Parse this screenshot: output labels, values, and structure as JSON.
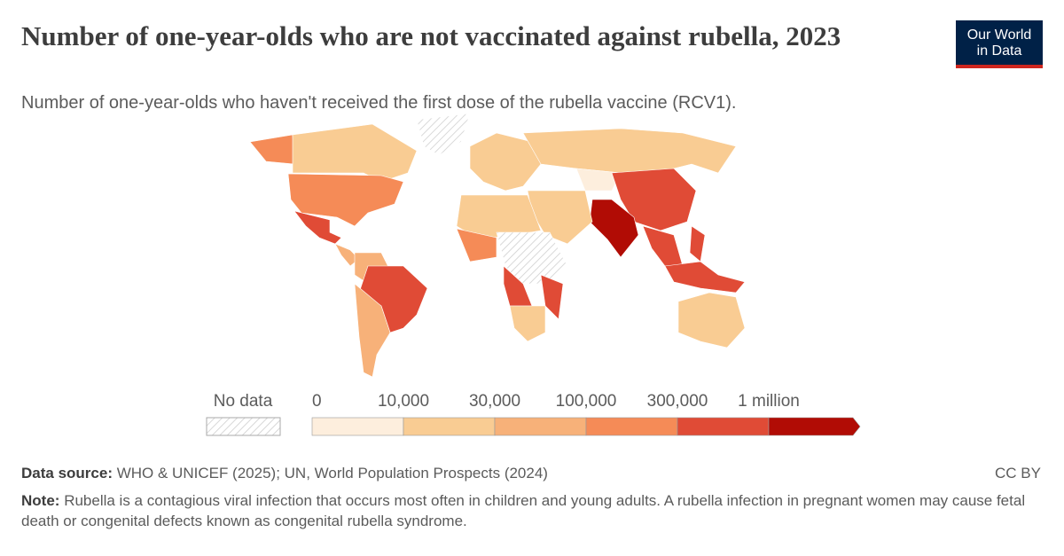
{
  "title": "Number of one-year-olds who are not vaccinated against rubella, 2023",
  "subtitle": "Number of one-year-olds who haven't received the first dose of the rubella vaccine (RCV1).",
  "logo": [
    "Our World",
    "in Data"
  ],
  "legend": {
    "no_data": "No data",
    "ticks": [
      "0",
      "10,000",
      "30,000",
      "100,000",
      "300,000",
      "1 million"
    ],
    "colors": [
      "#fdeedd",
      "#f9cc93",
      "#f7b179",
      "#f58b57",
      "#e04b36",
      "#b10c05"
    ]
  },
  "source_label": "Data source:",
  "source": "WHO & UNICEF (2025); UN, World Population Prospects (2024)",
  "license": "CC BY",
  "note_label": "Note:",
  "note": "Rubella is a contagious viral infection that occurs most often in children and young adults. A rubella infection in pregnant women may cause fetal death or congenital defects known as congenital rubella syndrome."
}
